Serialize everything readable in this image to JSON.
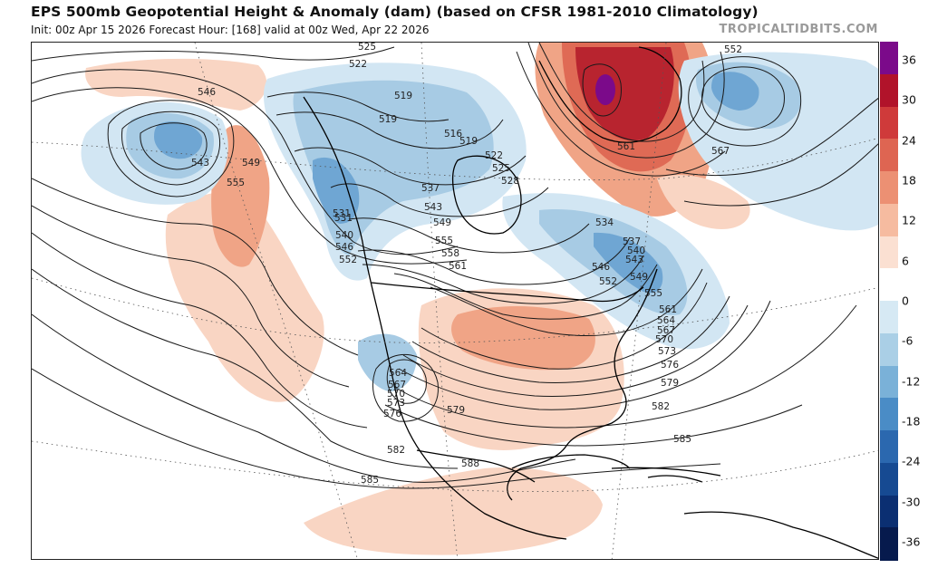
{
  "header": {
    "title": "EPS 500mb Geopotential Height & Anomaly (dam) (based on CFSR 1981-2010 Climatology)",
    "subtitle": "Init: 00z Apr 15 2026   Forecast Hour: [168]   valid at 00z Wed, Apr 22 2026",
    "brand": "TROPICALTIDBITS.COM"
  },
  "colorbar": {
    "ticks": [
      "36",
      "30",
      "24",
      "18",
      "12",
      "6",
      "0",
      "-6",
      "-12",
      "-18",
      "-24",
      "-30",
      "-36"
    ],
    "colors": [
      "#7b0a8a",
      "#b1132a",
      "#cf3a3a",
      "#de6552",
      "#ec9073",
      "#f6bba0",
      "#fbe0d2",
      "#ffffff",
      "#d6e9f4",
      "#aacfe6",
      "#7ab1d8",
      "#4a8cc6",
      "#2b68af",
      "#164a92",
      "#0b2f72",
      "#061a4d"
    ]
  },
  "map": {
    "colors": {
      "pos_light": "#f9d5c3",
      "pos_mid": "#f0a486",
      "pos_strong": "#df6a55",
      "pos_deep": "#b8242f",
      "pos_max": "#7b0a8a",
      "neg_light": "#d2e6f3",
      "neg_mid": "#a7cbe4",
      "neg_strong": "#6fa6d3",
      "neg_deep": "#3f7fc0",
      "contour": "#1a1a1a",
      "coast": "#000000"
    },
    "contour_labels": [
      {
        "text": "525"
      },
      {
        "text": "522"
      },
      {
        "text": "519"
      },
      {
        "text": "519"
      },
      {
        "text": "516"
      },
      {
        "text": "519"
      },
      {
        "text": "522"
      },
      {
        "text": "525"
      },
      {
        "text": "528"
      },
      {
        "text": "531"
      },
      {
        "text": "537"
      },
      {
        "text": "543"
      },
      {
        "text": "549"
      },
      {
        "text": "555"
      },
      {
        "text": "558"
      },
      {
        "text": "561"
      },
      {
        "text": "546"
      },
      {
        "text": "543"
      },
      {
        "text": "549"
      },
      {
        "text": "555"
      },
      {
        "text": "531"
      },
      {
        "text": "540"
      },
      {
        "text": "546"
      },
      {
        "text": "552"
      },
      {
        "text": "552"
      },
      {
        "text": "561"
      },
      {
        "text": "567"
      },
      {
        "text": "534"
      },
      {
        "text": "537"
      },
      {
        "text": "540"
      },
      {
        "text": "543"
      },
      {
        "text": "546"
      },
      {
        "text": "549"
      },
      {
        "text": "552"
      },
      {
        "text": "555"
      },
      {
        "text": "561"
      },
      {
        "text": "564"
      },
      {
        "text": "567"
      },
      {
        "text": "570"
      },
      {
        "text": "573"
      },
      {
        "text": "576"
      },
      {
        "text": "579"
      },
      {
        "text": "564"
      },
      {
        "text": "567"
      },
      {
        "text": "570"
      },
      {
        "text": "573"
      },
      {
        "text": "576"
      },
      {
        "text": "579"
      },
      {
        "text": "582"
      },
      {
        "text": "582"
      },
      {
        "text": "585"
      },
      {
        "text": "585"
      },
      {
        "text": "588"
      }
    ]
  }
}
